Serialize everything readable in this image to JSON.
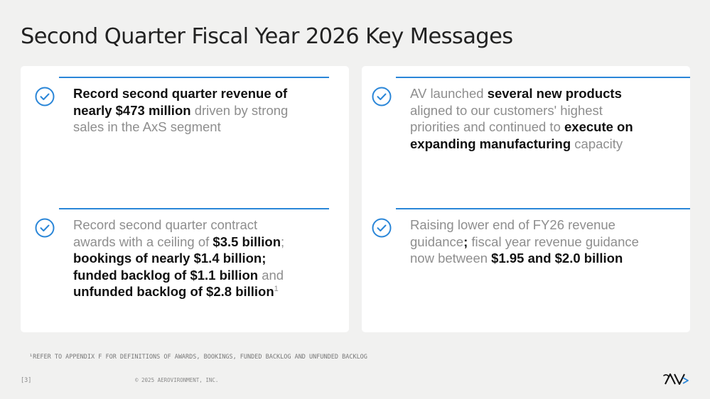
{
  "title": "Second Quarter Fiscal Year 2026 Key Messages",
  "messages": [
    {
      "segments": [
        {
          "text": "Record second quarter revenue of nearly $473 million",
          "bold": true
        },
        {
          "text": " driven by strong sales in the AxS segment",
          "bold": false
        }
      ]
    },
    {
      "segments": [
        {
          "text": "AV launched ",
          "bold": false
        },
        {
          "text": "several new products",
          "bold": true
        },
        {
          "text": " aligned to our customers' highest priorities and continued to ",
          "bold": false
        },
        {
          "text": "execute on expanding manufacturing",
          "bold": true
        },
        {
          "text": " capacity",
          "bold": false
        }
      ]
    },
    {
      "segments": [
        {
          "text": "Record second quarter contract awards with a ceiling of ",
          "bold": false
        },
        {
          "text": "$3.5 billion",
          "bold": true
        },
        {
          "text": "; ",
          "bold": false
        },
        {
          "text": "bookings of nearly $1.4 billion; funded backlog of $1.1 billion",
          "bold": true
        },
        {
          "text": " and ",
          "bold": false
        },
        {
          "text": "unfunded backlog of $2.8 billion",
          "bold": true
        }
      ],
      "superscript": "1"
    },
    {
      "segments": [
        {
          "text": "Raising lower end of FY26 revenue guidance",
          "bold": false
        },
        {
          "text": ";",
          "bold": true
        },
        {
          "text": " fiscal year revenue guidance now between ",
          "bold": false
        },
        {
          "text": "$1.95 and $2.0 billion",
          "bold": true
        }
      ]
    }
  ],
  "footnote": "¹REFER TO APPENDIX F FOR DEFINITIONS OF AWARDS, BOOKINGS, FUNDED BACKLOG AND UNFUNDED BACKLOG",
  "page_number": "[3]",
  "copyright": "© 2025 AEROVIRONMENT, INC.",
  "logo": "AV",
  "colors": {
    "accent": "#2a86d8",
    "bold_text": "#111111",
    "muted_text": "#8e8e8e",
    "background": "#f1f1f0",
    "panel": "#ffffff"
  },
  "icons": [
    "check-circle-icon",
    "check-circle-icon",
    "check-circle-icon",
    "check-circle-icon"
  ]
}
